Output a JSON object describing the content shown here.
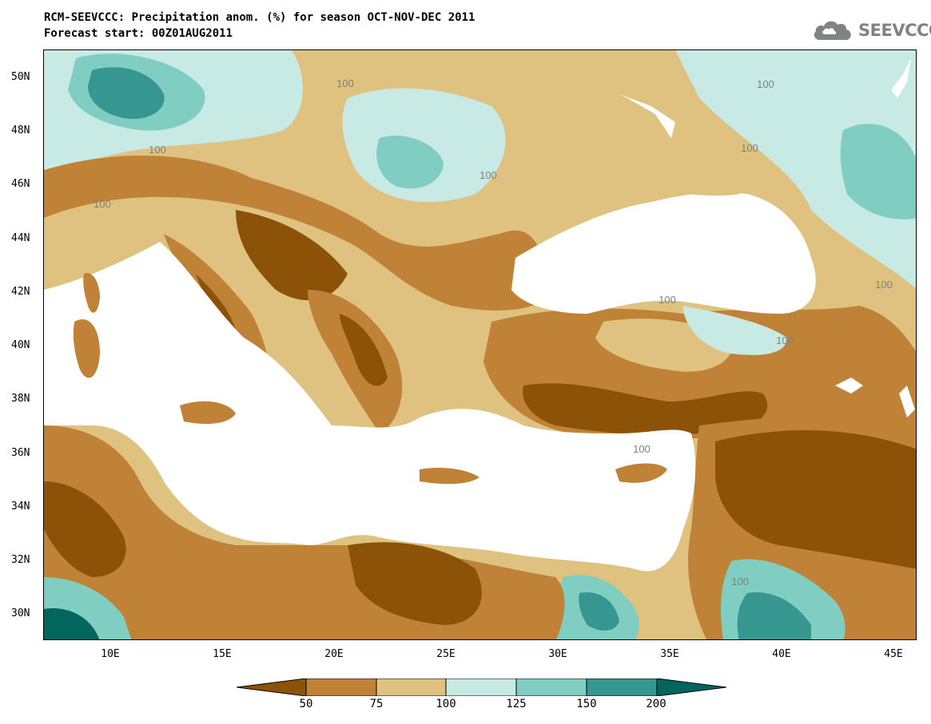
{
  "title": {
    "line1": "RCM-SEEVCCC: Precipitation anom. (%) for season OCT-NOV-DEC 2011",
    "line2": "Forecast start: 00Z01AUG2011"
  },
  "logo": {
    "text": "SEEVCCC",
    "icon": "cloud-logo-icon",
    "color": "#808285"
  },
  "map": {
    "lat_labels": [
      "50N",
      "48N",
      "46N",
      "44N",
      "42N",
      "40N",
      "38N",
      "36N",
      "34N",
      "32N",
      "30N"
    ],
    "lon_labels": [
      "10E",
      "15E",
      "20E",
      "25E",
      "30E",
      "35E",
      "40E",
      "45E"
    ],
    "contour_labels": [
      "100",
      "100",
      "100",
      "100",
      "100",
      "100",
      "100",
      "100",
      "100",
      "100",
      "100"
    ],
    "lon_range": [
      7,
      46
    ],
    "lat_range": [
      29,
      51
    ]
  },
  "legend": {
    "labels": [
      "50",
      "75",
      "100",
      "125",
      "150",
      "200"
    ],
    "colors": [
      "#8c5308",
      "#c08236",
      "#dfc27f",
      "#c7eae5",
      "#80cdc1",
      "#359790",
      "#02665e"
    ]
  }
}
